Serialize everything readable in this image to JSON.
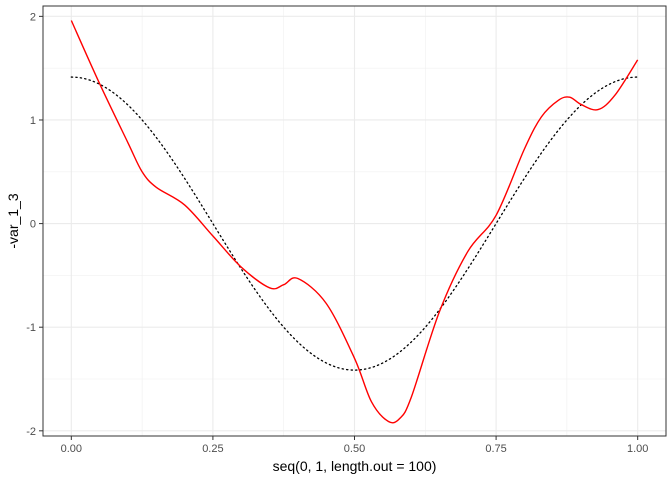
{
  "chart_data": {
    "type": "line",
    "xlabel": "seq(0, 1, length.out = 100)",
    "ylabel": "-var_1_3",
    "xlim": [
      -0.05,
      1.05
    ],
    "ylim": [
      -2.05,
      2.1
    ],
    "x_ticks": [
      0,
      0.25,
      0.5,
      0.75,
      1
    ],
    "x_tick_labels": [
      "0.00",
      "0.25",
      "0.50",
      "0.75",
      "1.00"
    ],
    "y_ticks": [
      -2,
      -1,
      0,
      1,
      2
    ],
    "y_tick_labels": [
      "-2",
      "-1",
      "0",
      "1",
      "2"
    ],
    "grid": true,
    "series": [
      {
        "style": "solid",
        "color": "#ff0000",
        "x": [
          0,
          0.05,
          0.1,
          0.125,
          0.15,
          0.2,
          0.25,
          0.3,
          0.35,
          0.375,
          0.4,
          0.45,
          0.5,
          0.53,
          0.56,
          0.58,
          0.6,
          0.65,
          0.7,
          0.75,
          0.8,
          0.83,
          0.86,
          0.88,
          0.9,
          0.93,
          0.96,
          1.0
        ],
        "y": [
          1.96,
          1.35,
          0.78,
          0.5,
          0.35,
          0.18,
          -0.12,
          -0.42,
          -0.62,
          -0.59,
          -0.53,
          -0.77,
          -1.3,
          -1.72,
          -1.91,
          -1.88,
          -1.68,
          -0.85,
          -0.27,
          0.08,
          0.72,
          1.03,
          1.19,
          1.22,
          1.15,
          1.1,
          1.24,
          1.58
        ]
      },
      {
        "style": "dotted",
        "color": "#000000",
        "function": "sqrt(2)*cos(2*pi*x)"
      }
    ]
  }
}
